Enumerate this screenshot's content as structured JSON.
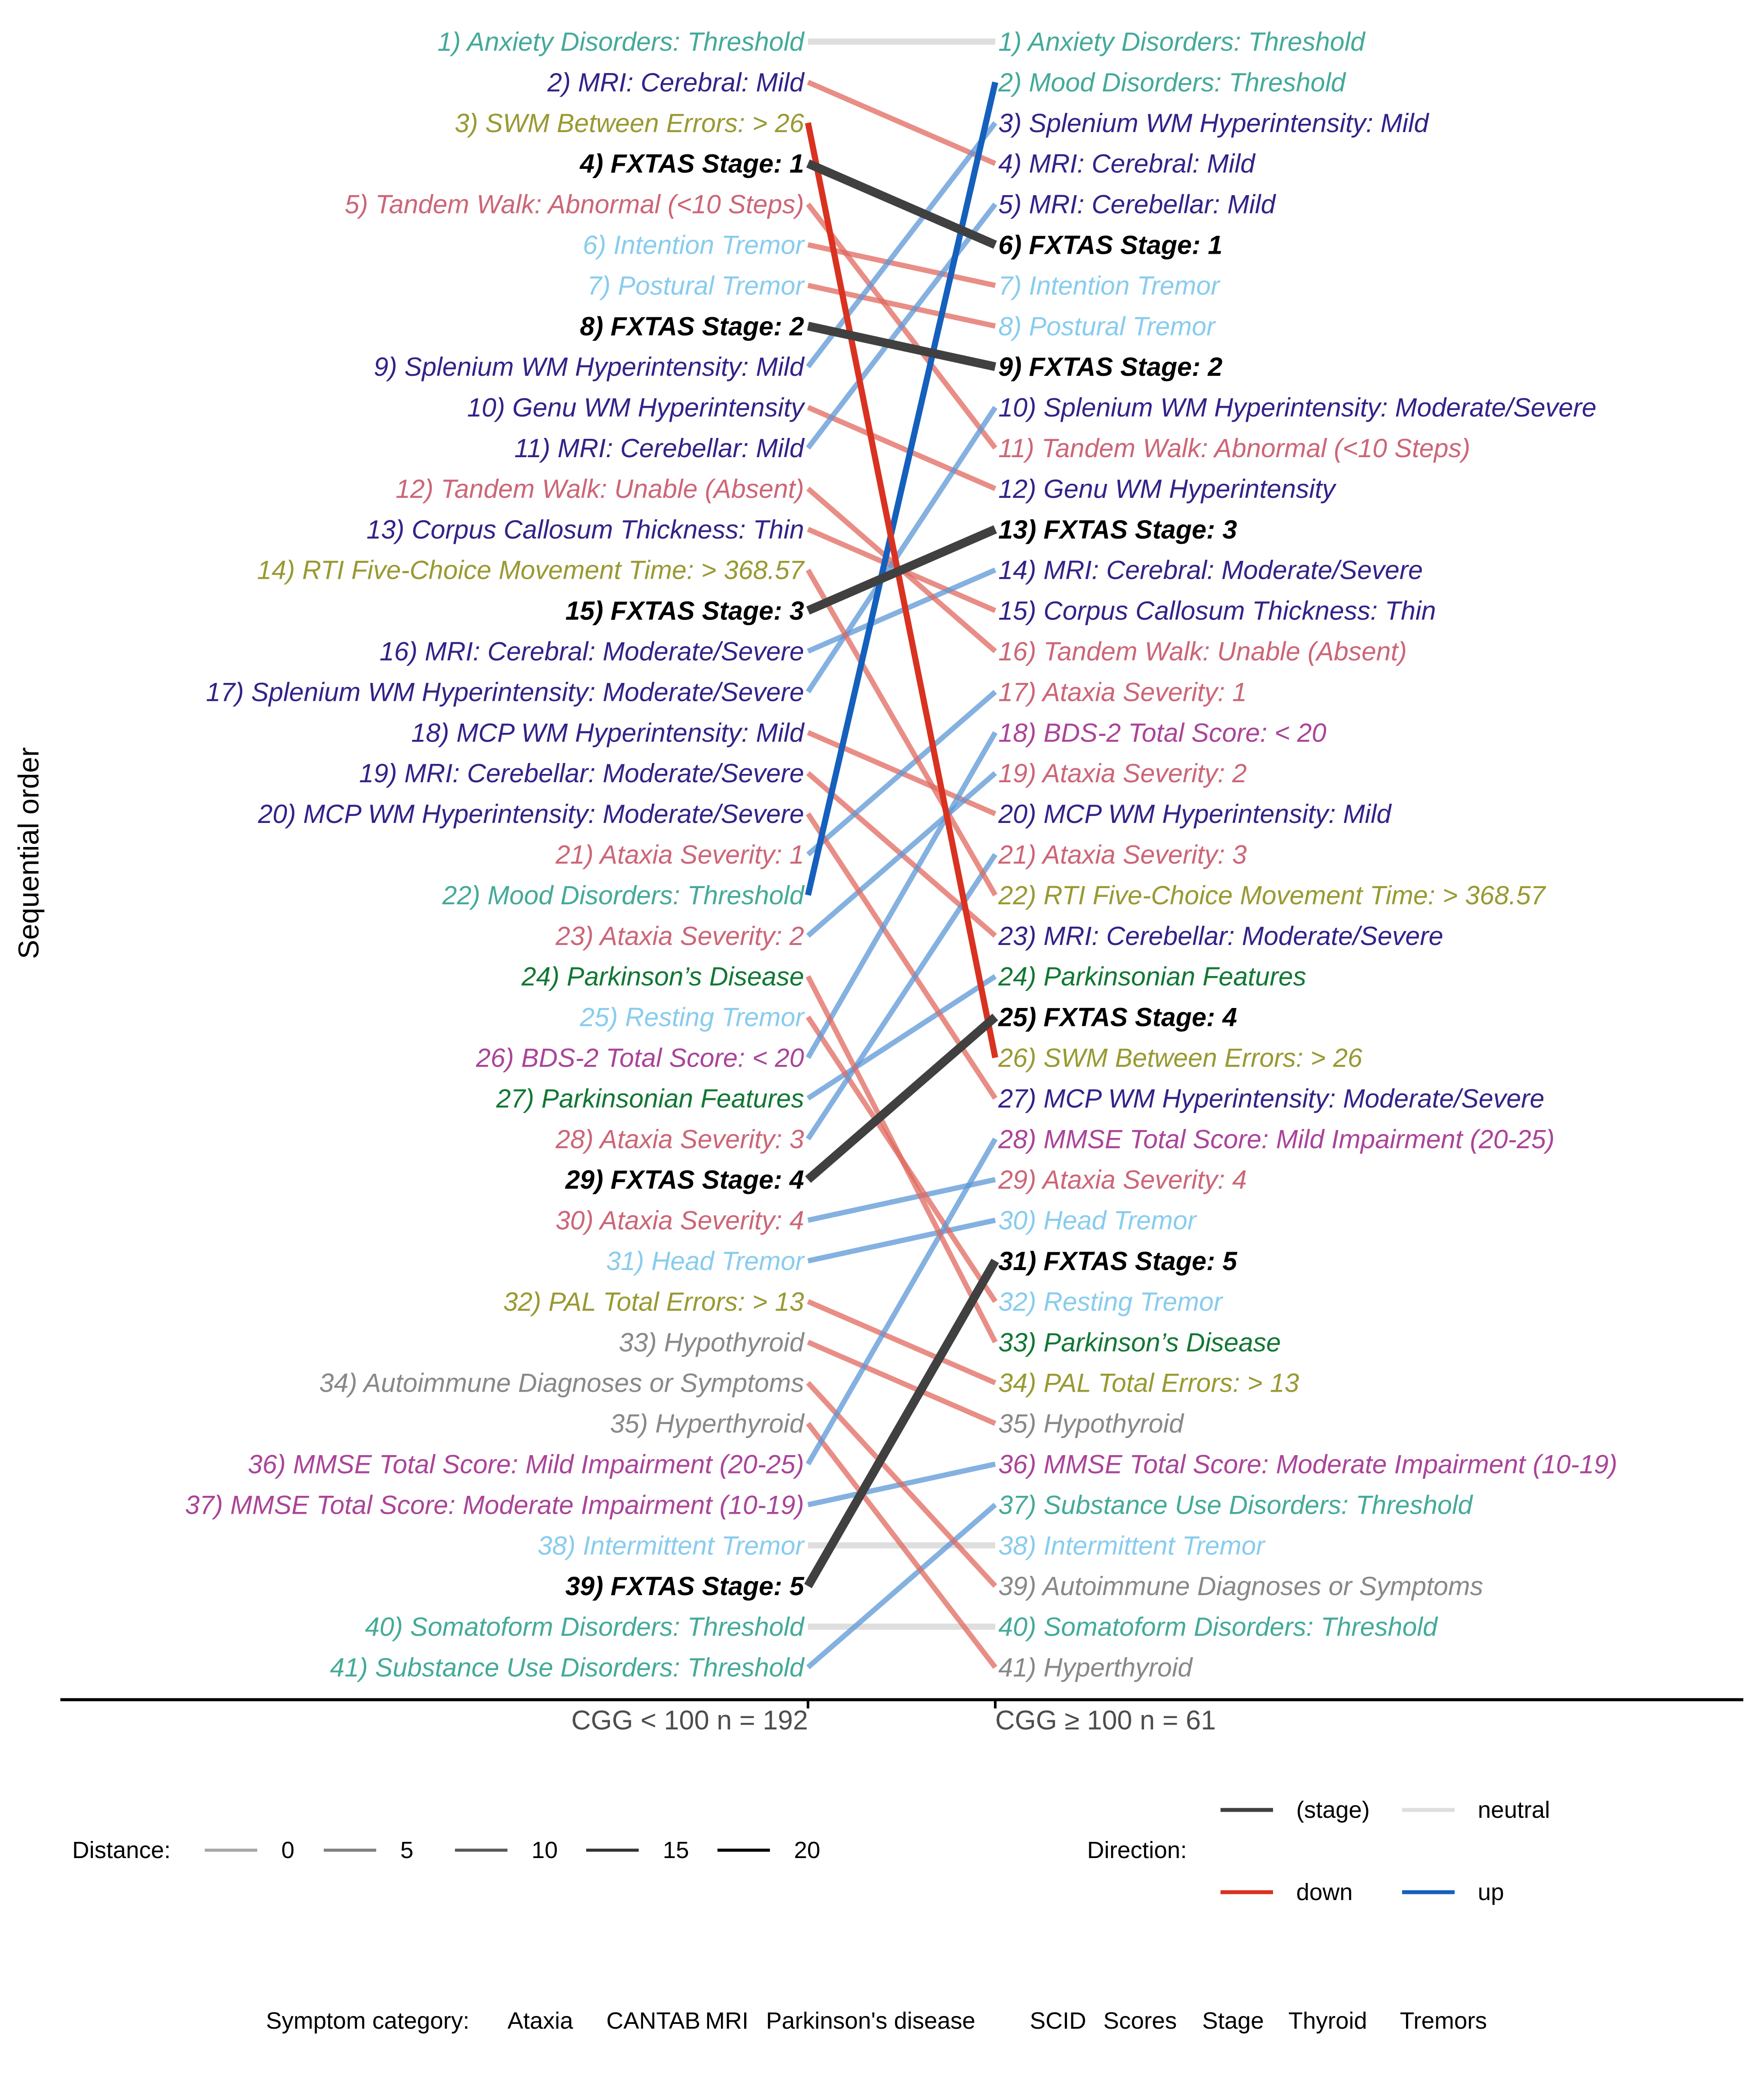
{
  "chart_data": {
    "type": "slope",
    "ylabel": "Sequential order",
    "groups": [
      "CGG < 100 n = 192",
      "CGG ≥ 100 n = 61"
    ],
    "categories": {
      "Ataxia": "#cc6677",
      "CANTAB": "#999933",
      "MRI": "#332288",
      "Parkinson's disease": "#117733",
      "SCID": "#44aa99",
      "Scores": "#aa4499",
      "Stage": "#000000",
      "Thyroid": "#888888",
      "Tremors": "#88ccee"
    },
    "direction_colors": {
      "stage": "#404040",
      "neutral": "#dedede",
      "down": "#e0685e",
      "up": "#5b97d6",
      "down_strong": "#d93221",
      "up_strong": "#1560bd"
    },
    "left_labels": [
      {
        "text": "1) Anxiety Disorders: Threshold",
        "cat": "SCID"
      },
      {
        "text": "2) MRI: Cerebral: Mild",
        "cat": "MRI"
      },
      {
        "text": "3) SWM Between Errors: > 26",
        "cat": "CANTAB"
      },
      {
        "text": "4) FXTAS Stage: 1",
        "cat": "Stage"
      },
      {
        "text": "5) Tandem Walk: Abnormal (<10 Steps)",
        "cat": "Ataxia"
      },
      {
        "text": "6) Intention Tremor",
        "cat": "Tremors"
      },
      {
        "text": "7) Postural Tremor",
        "cat": "Tremors"
      },
      {
        "text": "8) FXTAS Stage: 2",
        "cat": "Stage"
      },
      {
        "text": "9) Splenium WM Hyperintensity: Mild",
        "cat": "MRI"
      },
      {
        "text": "10) Genu WM Hyperintensity",
        "cat": "MRI"
      },
      {
        "text": "11) MRI: Cerebellar: Mild",
        "cat": "MRI"
      },
      {
        "text": "12) Tandem Walk: Unable (Absent)",
        "cat": "Ataxia"
      },
      {
        "text": "13) Corpus Callosum Thickness: Thin",
        "cat": "MRI"
      },
      {
        "text": "14) RTI Five-Choice Movement Time: > 368.57",
        "cat": "CANTAB"
      },
      {
        "text": "15) FXTAS Stage: 3",
        "cat": "Stage"
      },
      {
        "text": "16) MRI: Cerebral: Moderate/Severe",
        "cat": "MRI"
      },
      {
        "text": "17) Splenium WM Hyperintensity: Moderate/Severe",
        "cat": "MRI"
      },
      {
        "text": "18) MCP WM Hyperintensity: Mild",
        "cat": "MRI"
      },
      {
        "text": "19) MRI: Cerebellar: Moderate/Severe",
        "cat": "MRI"
      },
      {
        "text": "20) MCP WM Hyperintensity: Moderate/Severe",
        "cat": "MRI"
      },
      {
        "text": "21) Ataxia Severity: 1",
        "cat": "Ataxia"
      },
      {
        "text": "22) Mood Disorders: Threshold",
        "cat": "SCID"
      },
      {
        "text": "23) Ataxia Severity: 2",
        "cat": "Ataxia"
      },
      {
        "text": "24) Parkinson’s Disease",
        "cat": "Parkinson's disease"
      },
      {
        "text": "25) Resting Tremor",
        "cat": "Tremors"
      },
      {
        "text": "26) BDS-2 Total Score: < 20",
        "cat": "Scores"
      },
      {
        "text": "27) Parkinsonian Features",
        "cat": "Parkinson's disease"
      },
      {
        "text": "28) Ataxia Severity: 3",
        "cat": "Ataxia"
      },
      {
        "text": "29) FXTAS Stage: 4",
        "cat": "Stage"
      },
      {
        "text": "30) Ataxia Severity: 4",
        "cat": "Ataxia"
      },
      {
        "text": "31) Head Tremor",
        "cat": "Tremors"
      },
      {
        "text": "32) PAL Total Errors: > 13",
        "cat": "CANTAB"
      },
      {
        "text": "33) Hypothyroid",
        "cat": "Thyroid"
      },
      {
        "text": "34) Autoimmune Diagnoses or Symptoms",
        "cat": "Thyroid"
      },
      {
        "text": "35) Hyperthyroid",
        "cat": "Thyroid"
      },
      {
        "text": "36) MMSE Total Score: Mild Impairment (20-25)",
        "cat": "Scores"
      },
      {
        "text": "37) MMSE Total Score: Moderate Impairment (10-19)",
        "cat": "Scores"
      },
      {
        "text": "38) Intermittent Tremor",
        "cat": "Tremors"
      },
      {
        "text": "39) FXTAS Stage: 5",
        "cat": "Stage"
      },
      {
        "text": "40) Somatoform Disorders: Threshold",
        "cat": "SCID"
      },
      {
        "text": "41) Substance Use Disorders: Threshold",
        "cat": "SCID"
      }
    ],
    "right_labels": [
      {
        "text": "1) Anxiety Disorders: Threshold",
        "cat": "SCID"
      },
      {
        "text": "2) Mood Disorders: Threshold",
        "cat": "SCID"
      },
      {
        "text": "3) Splenium WM Hyperintensity: Mild",
        "cat": "MRI"
      },
      {
        "text": "4) MRI: Cerebral: Mild",
        "cat": "MRI"
      },
      {
        "text": "5) MRI: Cerebellar: Mild",
        "cat": "MRI"
      },
      {
        "text": "6) FXTAS Stage: 1",
        "cat": "Stage"
      },
      {
        "text": "7) Intention Tremor",
        "cat": "Tremors"
      },
      {
        "text": "8) Postural Tremor",
        "cat": "Tremors"
      },
      {
        "text": "9) FXTAS Stage: 2",
        "cat": "Stage"
      },
      {
        "text": "10) Splenium WM Hyperintensity: Moderate/Severe",
        "cat": "MRI"
      },
      {
        "text": "11) Tandem Walk: Abnormal (<10 Steps)",
        "cat": "Ataxia"
      },
      {
        "text": "12) Genu WM Hyperintensity",
        "cat": "MRI"
      },
      {
        "text": "13) FXTAS Stage: 3",
        "cat": "Stage"
      },
      {
        "text": "14) MRI: Cerebral: Moderate/Severe",
        "cat": "MRI"
      },
      {
        "text": "15) Corpus Callosum Thickness: Thin",
        "cat": "MRI"
      },
      {
        "text": "16) Tandem Walk: Unable (Absent)",
        "cat": "Ataxia"
      },
      {
        "text": "17) Ataxia Severity: 1",
        "cat": "Ataxia"
      },
      {
        "text": "18) BDS-2 Total Score: < 20",
        "cat": "Scores"
      },
      {
        "text": "19) Ataxia Severity: 2",
        "cat": "Ataxia"
      },
      {
        "text": "20) MCP WM Hyperintensity: Mild",
        "cat": "MRI"
      },
      {
        "text": "21) Ataxia Severity: 3",
        "cat": "Ataxia"
      },
      {
        "text": "22) RTI Five-Choice Movement Time: > 368.57",
        "cat": "CANTAB"
      },
      {
        "text": "23) MRI: Cerebellar: Moderate/Severe",
        "cat": "MRI"
      },
      {
        "text": "24) Parkinsonian Features",
        "cat": "Parkinson's disease"
      },
      {
        "text": "25) FXTAS Stage: 4",
        "cat": "Stage"
      },
      {
        "text": "26) SWM Between Errors: > 26",
        "cat": "CANTAB"
      },
      {
        "text": "27) MCP WM Hyperintensity: Moderate/Severe",
        "cat": "MRI"
      },
      {
        "text": "28) MMSE Total Score: Mild Impairment (20-25)",
        "cat": "Scores"
      },
      {
        "text": "29) Ataxia Severity: 4",
        "cat": "Ataxia"
      },
      {
        "text": "30) Head Tremor",
        "cat": "Tremors"
      },
      {
        "text": "31) FXTAS Stage: 5",
        "cat": "Stage"
      },
      {
        "text": "32) Resting Tremor",
        "cat": "Tremors"
      },
      {
        "text": "33) Parkinson’s Disease",
        "cat": "Parkinson's disease"
      },
      {
        "text": "34) PAL Total Errors: > 13",
        "cat": "CANTAB"
      },
      {
        "text": "35) Hypothyroid",
        "cat": "Thyroid"
      },
      {
        "text": "36) MMSE Total Score: Moderate Impairment (10-19)",
        "cat": "Scores"
      },
      {
        "text": "37) Substance Use Disorders: Threshold",
        "cat": "SCID"
      },
      {
        "text": "38) Intermittent Tremor",
        "cat": "Tremors"
      },
      {
        "text": "39) Autoimmune Diagnoses or Symptoms",
        "cat": "Thyroid"
      },
      {
        "text": "40) Somatoform Disorders: Threshold",
        "cat": "SCID"
      },
      {
        "text": "41) Hyperthyroid",
        "cat": "Thyroid"
      }
    ],
    "segments": [
      {
        "from": 1,
        "to": 1,
        "dir": "neutral"
      },
      {
        "from": 2,
        "to": 4,
        "dir": "down"
      },
      {
        "from": 3,
        "to": 26,
        "dir": "down"
      },
      {
        "from": 4,
        "to": 6,
        "dir": "stage"
      },
      {
        "from": 5,
        "to": 11,
        "dir": "down"
      },
      {
        "from": 6,
        "to": 7,
        "dir": "down"
      },
      {
        "from": 7,
        "to": 8,
        "dir": "down"
      },
      {
        "from": 8,
        "to": 9,
        "dir": "stage"
      },
      {
        "from": 9,
        "to": 3,
        "dir": "up"
      },
      {
        "from": 10,
        "to": 12,
        "dir": "down"
      },
      {
        "from": 11,
        "to": 5,
        "dir": "up"
      },
      {
        "from": 12,
        "to": 16,
        "dir": "down"
      },
      {
        "from": 13,
        "to": 15,
        "dir": "down"
      },
      {
        "from": 14,
        "to": 22,
        "dir": "down"
      },
      {
        "from": 15,
        "to": 13,
        "dir": "stage"
      },
      {
        "from": 16,
        "to": 14,
        "dir": "up"
      },
      {
        "from": 17,
        "to": 10,
        "dir": "up"
      },
      {
        "from": 18,
        "to": 20,
        "dir": "down"
      },
      {
        "from": 19,
        "to": 23,
        "dir": "down"
      },
      {
        "from": 20,
        "to": 27,
        "dir": "down"
      },
      {
        "from": 21,
        "to": 17,
        "dir": "up"
      },
      {
        "from": 22,
        "to": 2,
        "dir": "up"
      },
      {
        "from": 23,
        "to": 19,
        "dir": "up"
      },
      {
        "from": 24,
        "to": 33,
        "dir": "down"
      },
      {
        "from": 25,
        "to": 32,
        "dir": "down"
      },
      {
        "from": 26,
        "to": 18,
        "dir": "up"
      },
      {
        "from": 27,
        "to": 24,
        "dir": "up"
      },
      {
        "from": 28,
        "to": 21,
        "dir": "up"
      },
      {
        "from": 29,
        "to": 25,
        "dir": "stage"
      },
      {
        "from": 30,
        "to": 29,
        "dir": "up"
      },
      {
        "from": 31,
        "to": 30,
        "dir": "up"
      },
      {
        "from": 32,
        "to": 34,
        "dir": "down"
      },
      {
        "from": 33,
        "to": 35,
        "dir": "down"
      },
      {
        "from": 34,
        "to": 39,
        "dir": "down"
      },
      {
        "from": 35,
        "to": 41,
        "dir": "down"
      },
      {
        "from": 36,
        "to": 28,
        "dir": "up"
      },
      {
        "from": 37,
        "to": 36,
        "dir": "up"
      },
      {
        "from": 38,
        "to": 38,
        "dir": "neutral"
      },
      {
        "from": 39,
        "to": 31,
        "dir": "stage"
      },
      {
        "from": 40,
        "to": 40,
        "dir": "neutral"
      },
      {
        "from": 41,
        "to": 37,
        "dir": "up"
      }
    ],
    "legend": {
      "distance_title": "Distance:",
      "distance_values": [
        "0",
        "5",
        "10",
        "15",
        "20"
      ],
      "direction_title": "Direction:",
      "direction_items": [
        {
          "label": "(stage)",
          "key": "stage"
        },
        {
          "label": "neutral",
          "key": "neutral"
        },
        {
          "label": "down",
          "key": "down_strong"
        },
        {
          "label": "up",
          "key": "up_strong"
        }
      ],
      "category_title": "Symptom category:"
    }
  }
}
